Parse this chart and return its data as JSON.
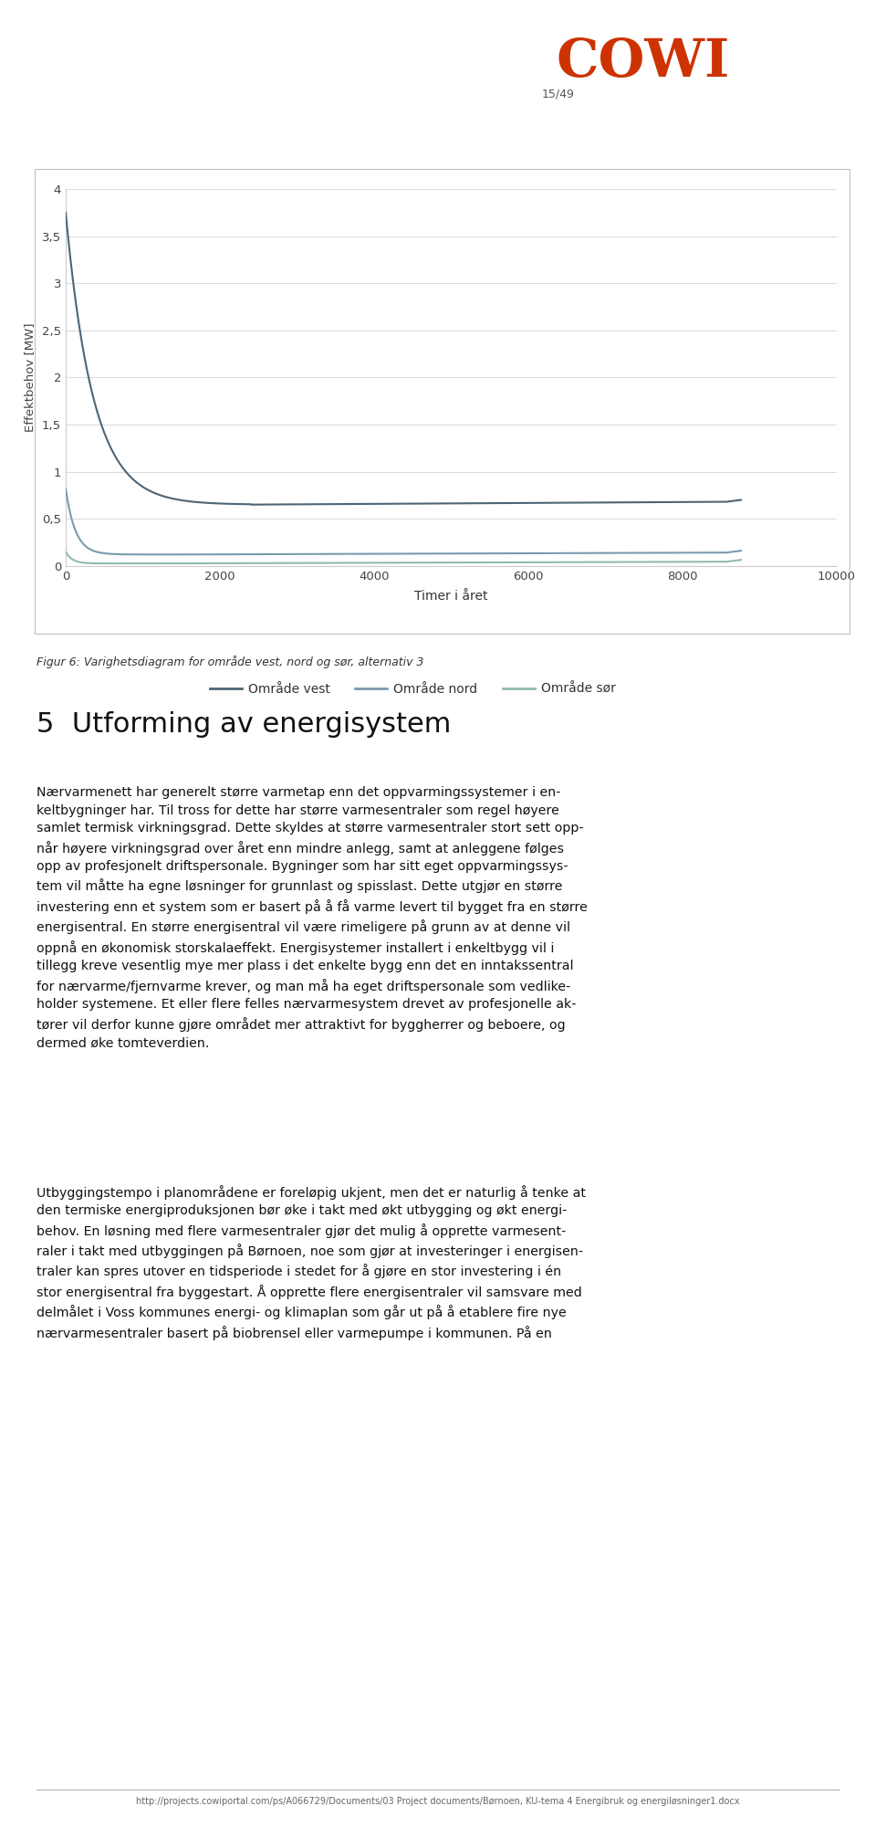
{
  "cowi_color": "#CC3300",
  "page_number": "15/49",
  "chart_ylabel": "Effektbehov [MW]",
  "chart_xlabel": "Timer i året",
  "ylim": [
    0,
    4
  ],
  "xlim": [
    0,
    10000
  ],
  "yticks": [
    0,
    0.5,
    1,
    1.5,
    2,
    2.5,
    3,
    3.5,
    4
  ],
  "ytick_labels": [
    "0",
    "0,5",
    "1",
    "1,5",
    "2",
    "2,5",
    "3",
    "3,5",
    "4"
  ],
  "xticks": [
    0,
    2000,
    4000,
    6000,
    8000,
    10000
  ],
  "xtick_labels": [
    "0",
    "2000",
    "4000",
    "6000",
    "8000",
    "10000"
  ],
  "line1_color": "#4D6575",
  "line2_color": "#7A9BAD",
  "line3_color": "#92BAA8",
  "legend_labels": [
    "Område vest",
    "Område nord",
    "Område sør"
  ],
  "figure_caption": "Figur 6: Varighetsdiagram for område vest, nord og sør, alternativ 3",
  "section_header": "5  Utforming av energisystem",
  "para1_lines": [
    "Nærvarmenett har generelt større varmetap enn det oppvarmingssystemer i en-",
    "keltbygninger har. Til tross for dette har større varmesentraler som regel høyere",
    "samlet termisk virkningsgrad. Dette skyldes at større varmesentraler stort sett opp-",
    "når høyere virkningsgrad over året enn mindre anlegg, samt at anleggene følges",
    "opp av profesjonelt driftspersonale. Bygninger som har sitt eget oppvarmingssys-",
    "tem vil måtte ha egne løsninger for grunnlast og spisslast. Dette utgjør en større",
    "investering enn et system som er basert på å få varme levert til bygget fra en større",
    "energisentral. En større energisentral vil være rimeligere på grunn av at denne vil",
    "oppnå en økonomisk storskalaeffekt. Energisystemer installert i enkeltbygg vil i",
    "tillegg kreve vesentlig mye mer plass i det enkelte bygg enn det en inntakssentral",
    "for nærvarme/fjernvarme krever, og man må ha eget driftspersonale som vedlike-",
    "holder systemene. Et eller flere felles nærvarmesystem drevet av profesjonelle ak-",
    "tører vil derfor kunne gjøre området mer attraktivt for byggherrer og beboere, og",
    "dermed øke tomteverdien."
  ],
  "para2_lines": [
    "Utbyggingstempo i planområdene er foreløpig ukjent, men det er naturlig å tenke at",
    "den termiske energiproduksjonen bør øke i takt med økt utbygging og økt energi-",
    "behov. En løsning med flere varmesentraler gjør det mulig å opprette varmesent-",
    "raler i takt med utbyggingen på Børnoen, noe som gjør at investeringer i energisen-",
    "traler kan spres utover en tidsperiode i stedet for å gjøre en stor investering i én",
    "stor energisentral fra byggestart. Å opprette flere energisentraler vil samsvare med",
    "delmålet i Voss kommunes energi- og klimaplan som går ut på å etablere fire nye",
    "nærvarmesentraler basert på biobrensel eller varmepumpe i kommunen. På en"
  ],
  "footer_text": "http://projects.cowiportal.com/ps/A066729/Documents/03 Project documents/Børnoen, KU-tema 4 Energibruk og energiløsninger1.docx",
  "background_color": "#FFFFFF",
  "chart_bg": "#FFFFFF",
  "grid_color": "#DCDCDC"
}
